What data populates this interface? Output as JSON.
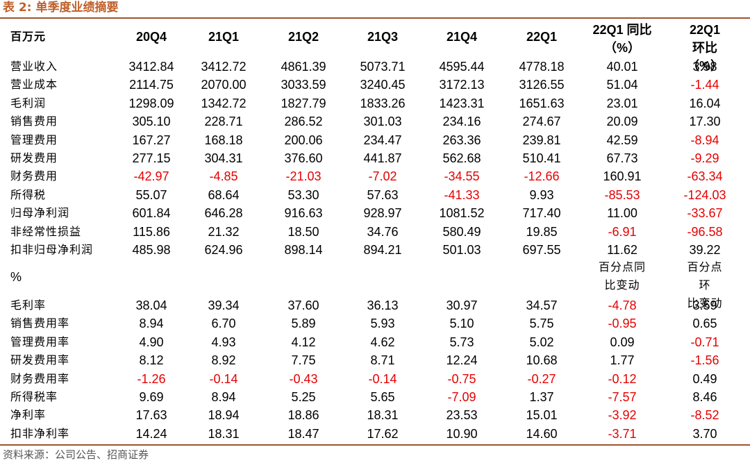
{
  "title": "表 2: 单季度业绩摘要",
  "header": {
    "unit": "百万元",
    "periods": [
      "20Q4",
      "21Q1",
      "21Q2",
      "21Q3",
      "21Q4",
      "22Q1"
    ],
    "yoy": "22Q1 同比\n（%）",
    "qoq": "22Q1 环比\n（%）"
  },
  "rows": [
    {
      "label": "营业收入",
      "values": [
        "3412.84",
        "3412.72",
        "4861.39",
        "5073.71",
        "4595.44",
        "4778.18",
        "40.01",
        "3.98"
      ]
    },
    {
      "label": "营业成本",
      "values": [
        "2114.75",
        "2070.00",
        "3033.59",
        "3240.45",
        "3172.13",
        "3126.55",
        "51.04",
        "-1.44"
      ]
    },
    {
      "label": "毛利润",
      "values": [
        "1298.09",
        "1342.72",
        "1827.79",
        "1833.26",
        "1423.31",
        "1651.63",
        "23.01",
        "16.04"
      ]
    },
    {
      "label": "销售费用",
      "values": [
        "305.10",
        "228.71",
        "286.52",
        "301.03",
        "234.16",
        "274.67",
        "20.09",
        "17.30"
      ]
    },
    {
      "label": "管理费用",
      "values": [
        "167.27",
        "168.18",
        "200.06",
        "234.47",
        "263.36",
        "239.81",
        "42.59",
        "-8.94"
      ]
    },
    {
      "label": "研发费用",
      "values": [
        "277.15",
        "304.31",
        "376.60",
        "441.87",
        "562.68",
        "510.41",
        "67.73",
        "-9.29"
      ]
    },
    {
      "label": "财务费用",
      "values": [
        "-42.97",
        "-4.85",
        "-21.03",
        "-7.02",
        "-34.55",
        "-12.66",
        "160.91",
        "-63.34"
      ]
    },
    {
      "label": "所得税",
      "values": [
        "55.07",
        "68.64",
        "53.30",
        "57.63",
        "-41.33",
        "9.93",
        "-85.53",
        "-124.03"
      ]
    },
    {
      "label": "归母净利润",
      "values": [
        "601.84",
        "646.28",
        "916.63",
        "928.97",
        "1081.52",
        "717.40",
        "11.00",
        "-33.67"
      ]
    },
    {
      "label": "非经常性损益",
      "values": [
        "115.86",
        "21.32",
        "18.50",
        "34.76",
        "580.49",
        "19.85",
        "-6.91",
        "-96.58"
      ]
    },
    {
      "label": "扣非归母净利润",
      "values": [
        "485.98",
        "624.96",
        "898.14",
        "894.21",
        "501.03",
        "697.55",
        "11.62",
        "39.22"
      ]
    }
  ],
  "section2": {
    "unit": "%",
    "yoy": "百分点同\n比变动",
    "qoq": "百分点环\n比变动"
  },
  "rows2": [
    {
      "label": "毛利率",
      "values": [
        "38.04",
        "39.34",
        "37.60",
        "36.13",
        "30.97",
        "34.57",
        "-4.78",
        "3.59"
      ]
    },
    {
      "label": "销售费用率",
      "values": [
        "8.94",
        "6.70",
        "5.89",
        "5.93",
        "5.10",
        "5.75",
        "-0.95",
        "0.65"
      ]
    },
    {
      "label": "管理费用率",
      "values": [
        "4.90",
        "4.93",
        "4.12",
        "4.62",
        "5.73",
        "5.02",
        "0.09",
        "-0.71"
      ]
    },
    {
      "label": "研发费用率",
      "values": [
        "8.12",
        "8.92",
        "7.75",
        "8.71",
        "12.24",
        "10.68",
        "1.77",
        "-1.56"
      ]
    },
    {
      "label": "财务费用率",
      "values": [
        "-1.26",
        "-0.14",
        "-0.43",
        "-0.14",
        "-0.75",
        "-0.27",
        "-0.12",
        "0.49"
      ]
    },
    {
      "label": "所得税率",
      "values": [
        "9.69",
        "8.94",
        "5.25",
        "5.65",
        "-7.09",
        "1.37",
        "-7.57",
        "8.46"
      ]
    },
    {
      "label": "净利率",
      "values": [
        "17.63",
        "18.94",
        "18.86",
        "18.31",
        "23.53",
        "15.01",
        "-3.92",
        "-8.52"
      ]
    },
    {
      "label": "扣非净利率",
      "values": [
        "14.24",
        "18.31",
        "18.47",
        "17.62",
        "10.90",
        "14.60",
        "-3.71",
        "3.70"
      ]
    }
  ],
  "source": "资料来源：公司公告、招商证券"
}
